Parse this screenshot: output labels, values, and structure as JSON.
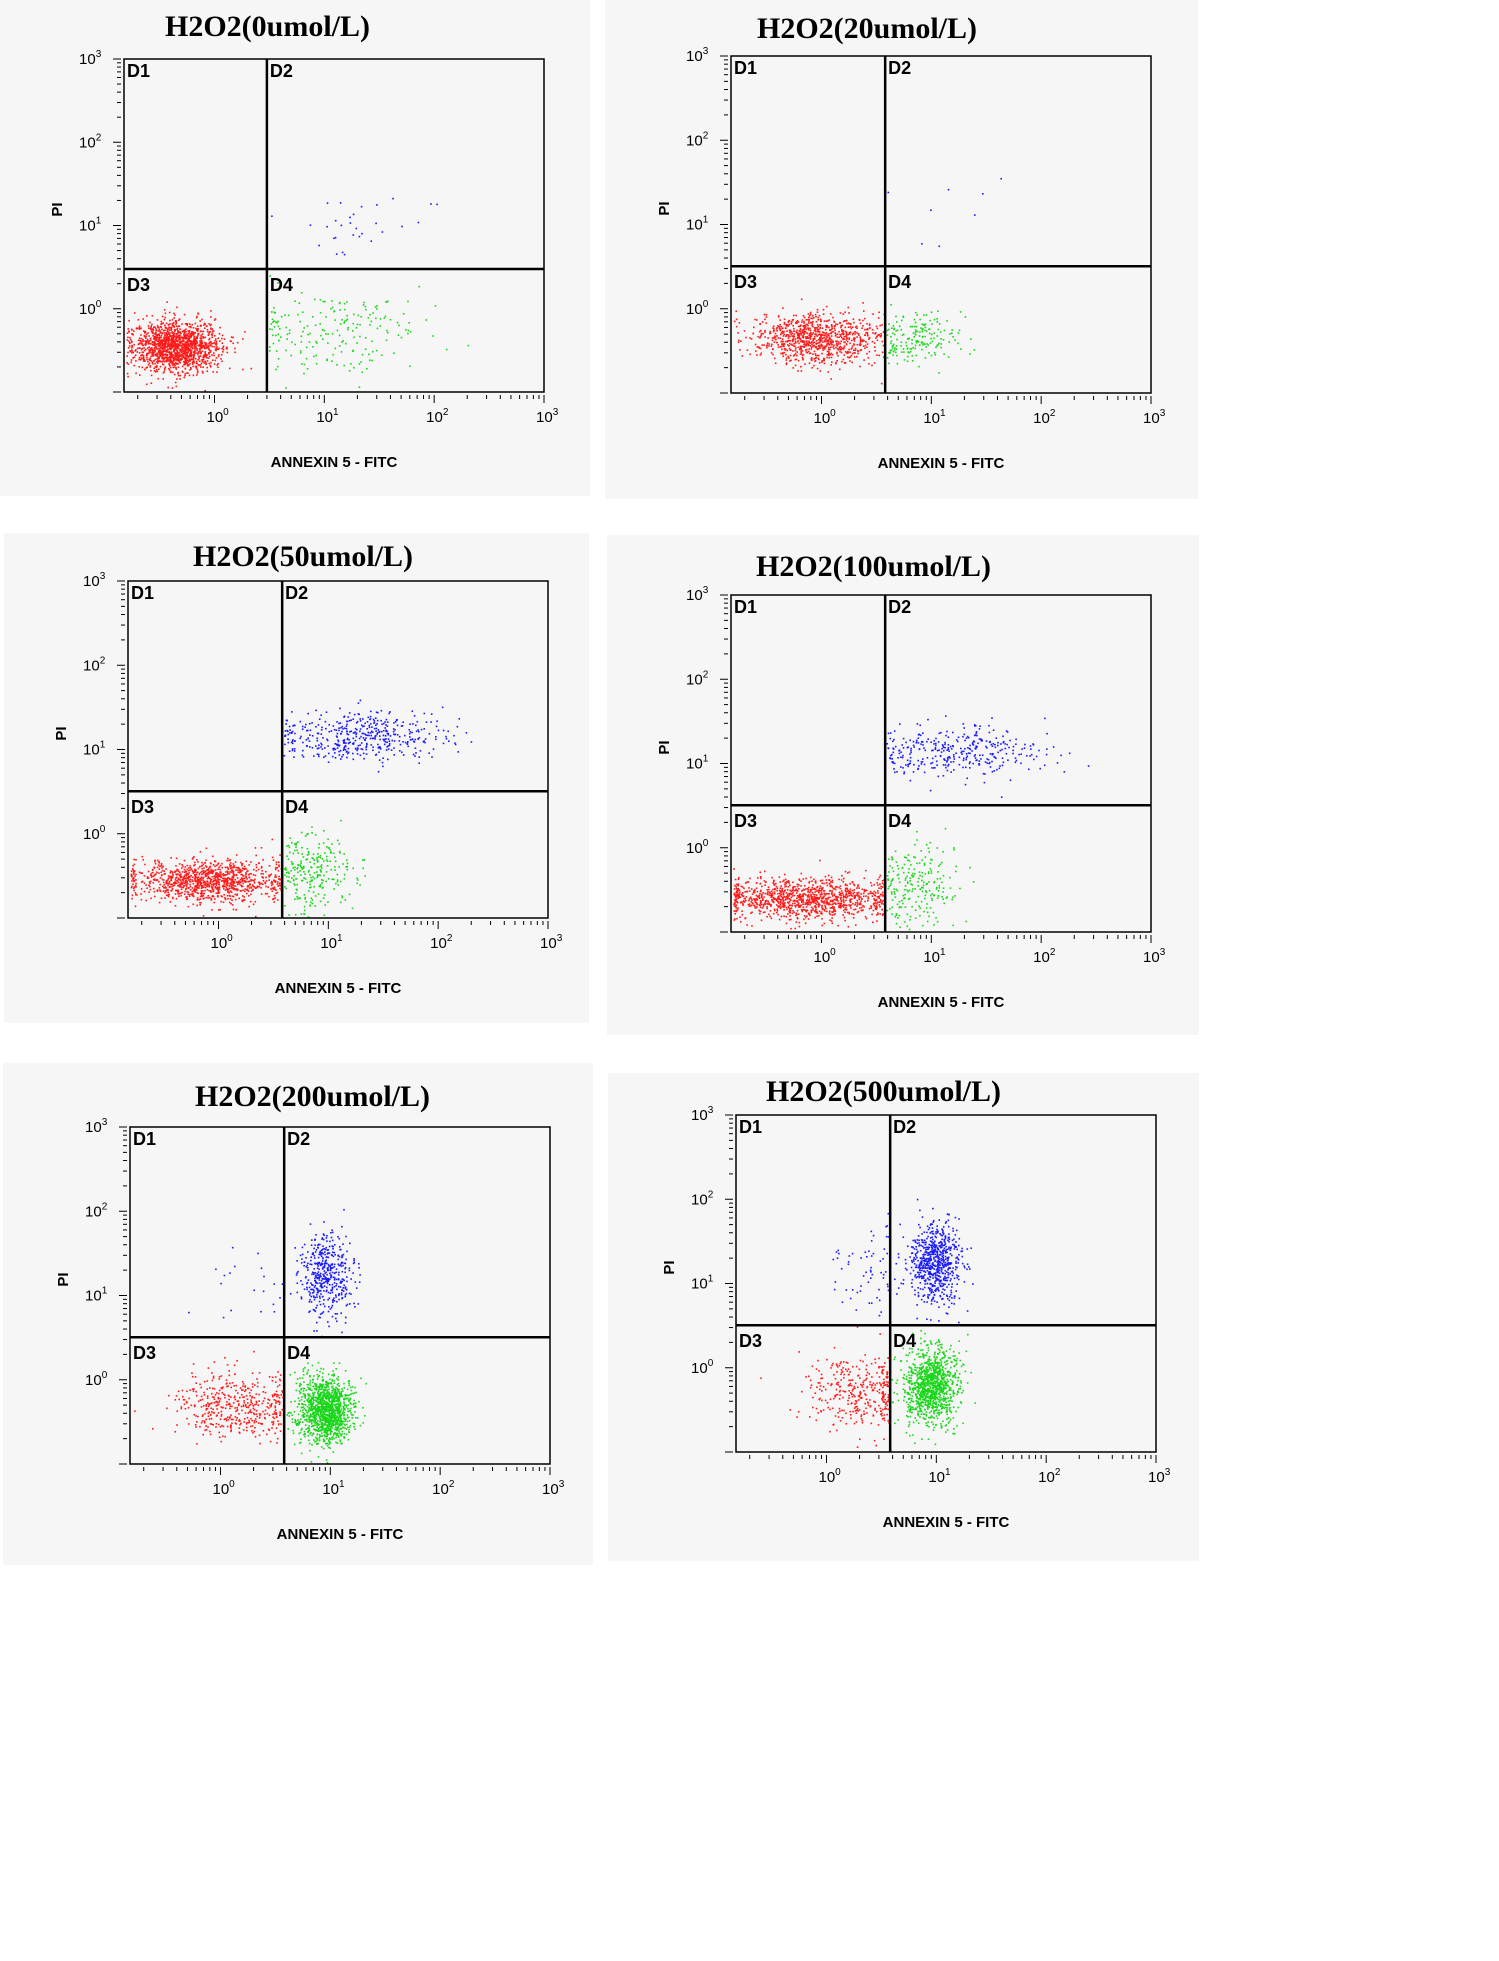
{
  "colors": {
    "D1": "#1a1aff",
    "D2": "#1a1aff",
    "D3": "#ff1a1a",
    "D4": "#1ad61a",
    "frame": "#000000",
    "panel_background": "#f6f6f6"
  },
  "chart_data": [
    {
      "type": "scatter",
      "title": "H2O2(0umol/L)",
      "xlabel": "ANNEXIN 5 - FITC",
      "ylabel": "PI",
      "x_scale": "log",
      "y_scale": "log",
      "xlim": [
        0.15,
        1000
      ],
      "ylim": [
        0.1,
        1000
      ],
      "x_ticks": [
        {
          "base": "10",
          "exp": "0"
        },
        {
          "base": "10",
          "exp": "1"
        },
        {
          "base": "10",
          "exp": "2"
        },
        {
          "base": "10",
          "exp": "3"
        }
      ],
      "y_ticks": [
        {
          "base": "10",
          "exp": "0"
        },
        {
          "base": "10",
          "exp": "1"
        },
        {
          "base": "10",
          "exp": "2"
        },
        {
          "base": "10",
          "exp": "3"
        }
      ],
      "gate": {
        "x": 3.0,
        "y": 3.0
      },
      "quadrant_labels": [
        "D1",
        "D2",
        "D3",
        "D4"
      ],
      "populations": [
        {
          "quadrant": "D3",
          "count": 1500,
          "center_log": [
            -0.35,
            -0.45
          ],
          "spread_log": [
            0.2,
            0.15
          ]
        },
        {
          "quadrant": "D4",
          "count": 200,
          "center_log": [
            1.05,
            -0.25
          ],
          "spread_log": [
            0.45,
            0.25
          ]
        },
        {
          "quadrant": "D2",
          "count": 30,
          "center_log": [
            1.35,
            1.0
          ],
          "spread_log": [
            0.4,
            0.2
          ]
        }
      ]
    },
    {
      "type": "scatter",
      "title": "H2O2(20umol/L)",
      "xlabel": "ANNEXIN 5 - FITC",
      "ylabel": "PI",
      "x_scale": "log",
      "y_scale": "log",
      "xlim": [
        0.15,
        1000
      ],
      "ylim": [
        0.1,
        1000
      ],
      "x_ticks": [
        {
          "base": "10",
          "exp": "0"
        },
        {
          "base": "10",
          "exp": "1"
        },
        {
          "base": "10",
          "exp": "2"
        },
        {
          "base": "10",
          "exp": "3"
        }
      ],
      "y_ticks": [
        {
          "base": "10",
          "exp": "0"
        },
        {
          "base": "10",
          "exp": "1"
        },
        {
          "base": "10",
          "exp": "2"
        },
        {
          "base": "10",
          "exp": "3"
        }
      ],
      "gate": {
        "x": 3.8,
        "y": 3.2
      },
      "quadrant_labels": [
        "D1",
        "D2",
        "D3",
        "D4"
      ],
      "populations": [
        {
          "quadrant": "D3",
          "count": 900,
          "center_log": [
            -0.05,
            -0.35
          ],
          "spread_log": [
            0.3,
            0.15
          ]
        },
        {
          "quadrant": "D4",
          "count": 180,
          "center_log": [
            0.85,
            -0.35
          ],
          "spread_log": [
            0.22,
            0.15
          ]
        },
        {
          "quadrant": "D2",
          "count": 8,
          "center_log": [
            1.3,
            1.1
          ],
          "spread_log": [
            0.4,
            0.3
          ]
        }
      ]
    },
    {
      "type": "scatter",
      "title": "H2O2(50umol/L)",
      "xlabel": "ANNEXIN 5 - FITC",
      "ylabel": "PI",
      "x_scale": "log",
      "y_scale": "log",
      "xlim": [
        0.15,
        1000
      ],
      "ylim": [
        0.1,
        1000
      ],
      "x_ticks": [
        {
          "base": "10",
          "exp": "0"
        },
        {
          "base": "10",
          "exp": "1"
        },
        {
          "base": "10",
          "exp": "2"
        },
        {
          "base": "10",
          "exp": "3"
        }
      ],
      "y_ticks": [
        {
          "base": "10",
          "exp": "0"
        },
        {
          "base": "10",
          "exp": "1"
        },
        {
          "base": "10",
          "exp": "2"
        },
        {
          "base": "10",
          "exp": "3"
        }
      ],
      "gate": {
        "x": 3.8,
        "y": 3.2
      },
      "quadrant_labels": [
        "D1",
        "D2",
        "D3",
        "D4"
      ],
      "populations": [
        {
          "quadrant": "D3",
          "count": 1100,
          "center_log": [
            -0.1,
            -0.55
          ],
          "spread_log": [
            0.35,
            0.12
          ]
        },
        {
          "quadrant": "D4",
          "count": 250,
          "center_log": [
            0.85,
            -0.45
          ],
          "spread_log": [
            0.2,
            0.25
          ]
        },
        {
          "quadrant": "D2",
          "count": 450,
          "center_log": [
            1.3,
            1.15
          ],
          "spread_log": [
            0.4,
            0.15
          ]
        }
      ]
    },
    {
      "type": "scatter",
      "title": "H2O2(100umol/L)",
      "xlabel": "ANNEXIN 5 - FITC",
      "ylabel": "PI",
      "x_scale": "log",
      "y_scale": "log",
      "xlim": [
        0.15,
        1000
      ],
      "ylim": [
        0.1,
        1000
      ],
      "x_ticks": [
        {
          "base": "10",
          "exp": "0"
        },
        {
          "base": "10",
          "exp": "1"
        },
        {
          "base": "10",
          "exp": "2"
        },
        {
          "base": "10",
          "exp": "3"
        }
      ],
      "y_ticks": [
        {
          "base": "10",
          "exp": "0"
        },
        {
          "base": "10",
          "exp": "1"
        },
        {
          "base": "10",
          "exp": "2"
        },
        {
          "base": "10",
          "exp": "3"
        }
      ],
      "gate": {
        "x": 3.8,
        "y": 3.2
      },
      "quadrant_labels": [
        "D1",
        "D2",
        "D3",
        "D4"
      ],
      "populations": [
        {
          "quadrant": "D3",
          "count": 1100,
          "center_log": [
            -0.15,
            -0.6
          ],
          "spread_log": [
            0.4,
            0.12
          ]
        },
        {
          "quadrant": "D4",
          "count": 220,
          "center_log": [
            0.85,
            -0.45
          ],
          "spread_log": [
            0.2,
            0.28
          ]
        },
        {
          "quadrant": "D2",
          "count": 350,
          "center_log": [
            1.25,
            1.15
          ],
          "spread_log": [
            0.4,
            0.15
          ]
        }
      ]
    },
    {
      "type": "scatter",
      "title": "H2O2(200umol/L)",
      "xlabel": "ANNEXIN 5 - FITC",
      "ylabel": "PI",
      "x_scale": "log",
      "y_scale": "log",
      "xlim": [
        0.15,
        1000
      ],
      "ylim": [
        0.1,
        1000
      ],
      "x_ticks": [
        {
          "base": "10",
          "exp": "0"
        },
        {
          "base": "10",
          "exp": "1"
        },
        {
          "base": "10",
          "exp": "2"
        },
        {
          "base": "10",
          "exp": "3"
        }
      ],
      "y_ticks": [
        {
          "base": "10",
          "exp": "0"
        },
        {
          "base": "10",
          "exp": "1"
        },
        {
          "base": "10",
          "exp": "2"
        },
        {
          "base": "10",
          "exp": "3"
        }
      ],
      "gate": {
        "x": 3.8,
        "y": 3.2
      },
      "quadrant_labels": [
        "D1",
        "D2",
        "D3",
        "D4"
      ],
      "populations": [
        {
          "quadrant": "D3",
          "count": 450,
          "center_log": [
            0.15,
            -0.3
          ],
          "spread_log": [
            0.3,
            0.2
          ]
        },
        {
          "quadrant": "D4",
          "count": 1300,
          "center_log": [
            0.95,
            -0.35
          ],
          "spread_log": [
            0.12,
            0.2
          ]
        },
        {
          "quadrant": "D2",
          "count": 450,
          "center_log": [
            0.95,
            1.25
          ],
          "spread_log": [
            0.12,
            0.25
          ]
        },
        {
          "quadrant": "D1",
          "count": 20,
          "center_log": [
            0.25,
            1.1
          ],
          "spread_log": [
            0.25,
            0.3
          ]
        }
      ]
    },
    {
      "type": "scatter",
      "title": "H2O2(500umol/L)",
      "xlabel": "ANNEXIN 5 - FITC",
      "ylabel": "PI",
      "x_scale": "log",
      "y_scale": "log",
      "xlim": [
        0.15,
        1000
      ],
      "ylim": [
        0.1,
        1000
      ],
      "x_ticks": [
        {
          "base": "10",
          "exp": "0"
        },
        {
          "base": "10",
          "exp": "1"
        },
        {
          "base": "10",
          "exp": "2"
        },
        {
          "base": "10",
          "exp": "3"
        }
      ],
      "y_ticks": [
        {
          "base": "10",
          "exp": "0"
        },
        {
          "base": "10",
          "exp": "1"
        },
        {
          "base": "10",
          "exp": "2"
        },
        {
          "base": "10",
          "exp": "3"
        }
      ],
      "gate": {
        "x": 3.8,
        "y": 3.2
      },
      "quadrant_labels": [
        "D1",
        "D2",
        "D3",
        "D4"
      ],
      "populations": [
        {
          "quadrant": "D3",
          "count": 350,
          "center_log": [
            0.3,
            -0.25
          ],
          "spread_log": [
            0.25,
            0.22
          ]
        },
        {
          "quadrant": "D4",
          "count": 1100,
          "center_log": [
            0.95,
            -0.2
          ],
          "spread_log": [
            0.12,
            0.22
          ]
        },
        {
          "quadrant": "D2",
          "count": 700,
          "center_log": [
            0.98,
            1.25
          ],
          "spread_log": [
            0.12,
            0.25
          ]
        },
        {
          "quadrant": "D1",
          "count": 60,
          "center_log": [
            0.35,
            1.15
          ],
          "spread_log": [
            0.2,
            0.3
          ]
        }
      ]
    }
  ]
}
